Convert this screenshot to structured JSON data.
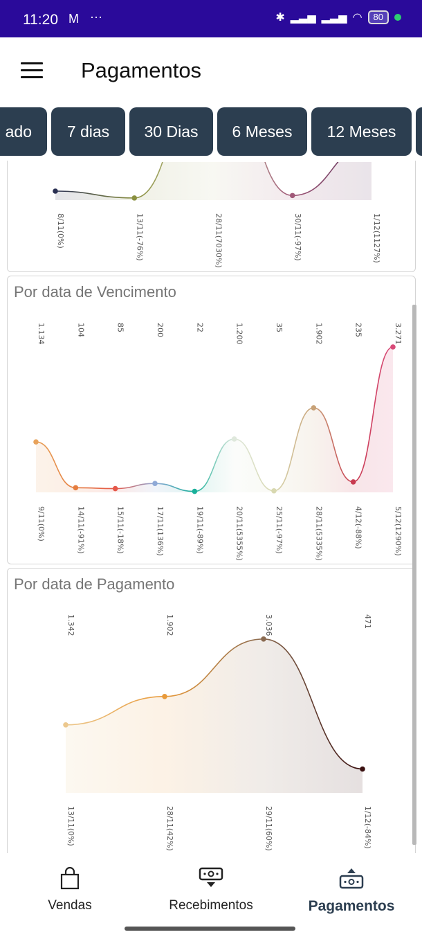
{
  "status_bar": {
    "time": "11:20",
    "mail_icon": "gmail-icon",
    "more": "···",
    "battery": "80"
  },
  "header": {
    "title": "Pagamentos"
  },
  "tabs": [
    {
      "label": "ado"
    },
    {
      "label": "7 dias"
    },
    {
      "label": "30 Dias"
    },
    {
      "label": "6 Meses"
    },
    {
      "label": "12 Meses"
    }
  ],
  "chart_data": [
    {
      "type": "area",
      "title": "",
      "categories": [
        "8/11(0%)",
        "13/11(-76%)",
        "28/11(7030%)",
        "30/11(-97%)",
        "1/12(1127%)"
      ],
      "values": [
        100,
        24,
        1711,
        51,
        627
      ],
      "values_note_visible": false,
      "colors": [
        "#2a3052",
        "#8a9040",
        "#c8c8a0",
        "#a05878",
        "#5a3058"
      ]
    },
    {
      "type": "area",
      "title": "Por data de Vencimento",
      "categories": [
        "9/11(0%)",
        "14/11(-91%)",
        "15/11(-18%)",
        "17/11(136%)",
        "19/11(-89%)",
        "20/11(5355%)",
        "25/11(-97%)",
        "28/11(5335%)",
        "4/12(-88%)",
        "5/12(1290%)"
      ],
      "value_labels": [
        "1.134",
        "104",
        "85",
        "200",
        "22",
        "1.200",
        "35",
        "1.902",
        "235",
        "3.271"
      ],
      "values": [
        1134,
        104,
        85,
        200,
        22,
        1200,
        35,
        1902,
        235,
        3271
      ],
      "colors": [
        "#e8a25a",
        "#e57d3f",
        "#e5584a",
        "#8fa9d6",
        "#19b09a",
        "#dfe8dc",
        "#d8d8b0",
        "#c8a278",
        "#c83a50",
        "#d84a78"
      ]
    },
    {
      "type": "area",
      "title": "Por data de Pagamento",
      "categories": [
        "13/11(0%)",
        "28/11(42%)",
        "29/11(60%)",
        "1/12(-84%)"
      ],
      "value_labels": [
        "1.342",
        "1.902",
        "3.036",
        "471"
      ],
      "values": [
        1342,
        1902,
        3036,
        471
      ],
      "colors": [
        "#ecc88e",
        "#e89a3a",
        "#8a6a50",
        "#3a1010"
      ]
    }
  ],
  "bottom_nav": [
    {
      "label": "Vendas",
      "icon": "shopping-bag-icon"
    },
    {
      "label": "Recebimentos",
      "icon": "money-receive-icon"
    },
    {
      "label": "Pagamentos",
      "icon": "money-send-icon",
      "active": true
    }
  ]
}
